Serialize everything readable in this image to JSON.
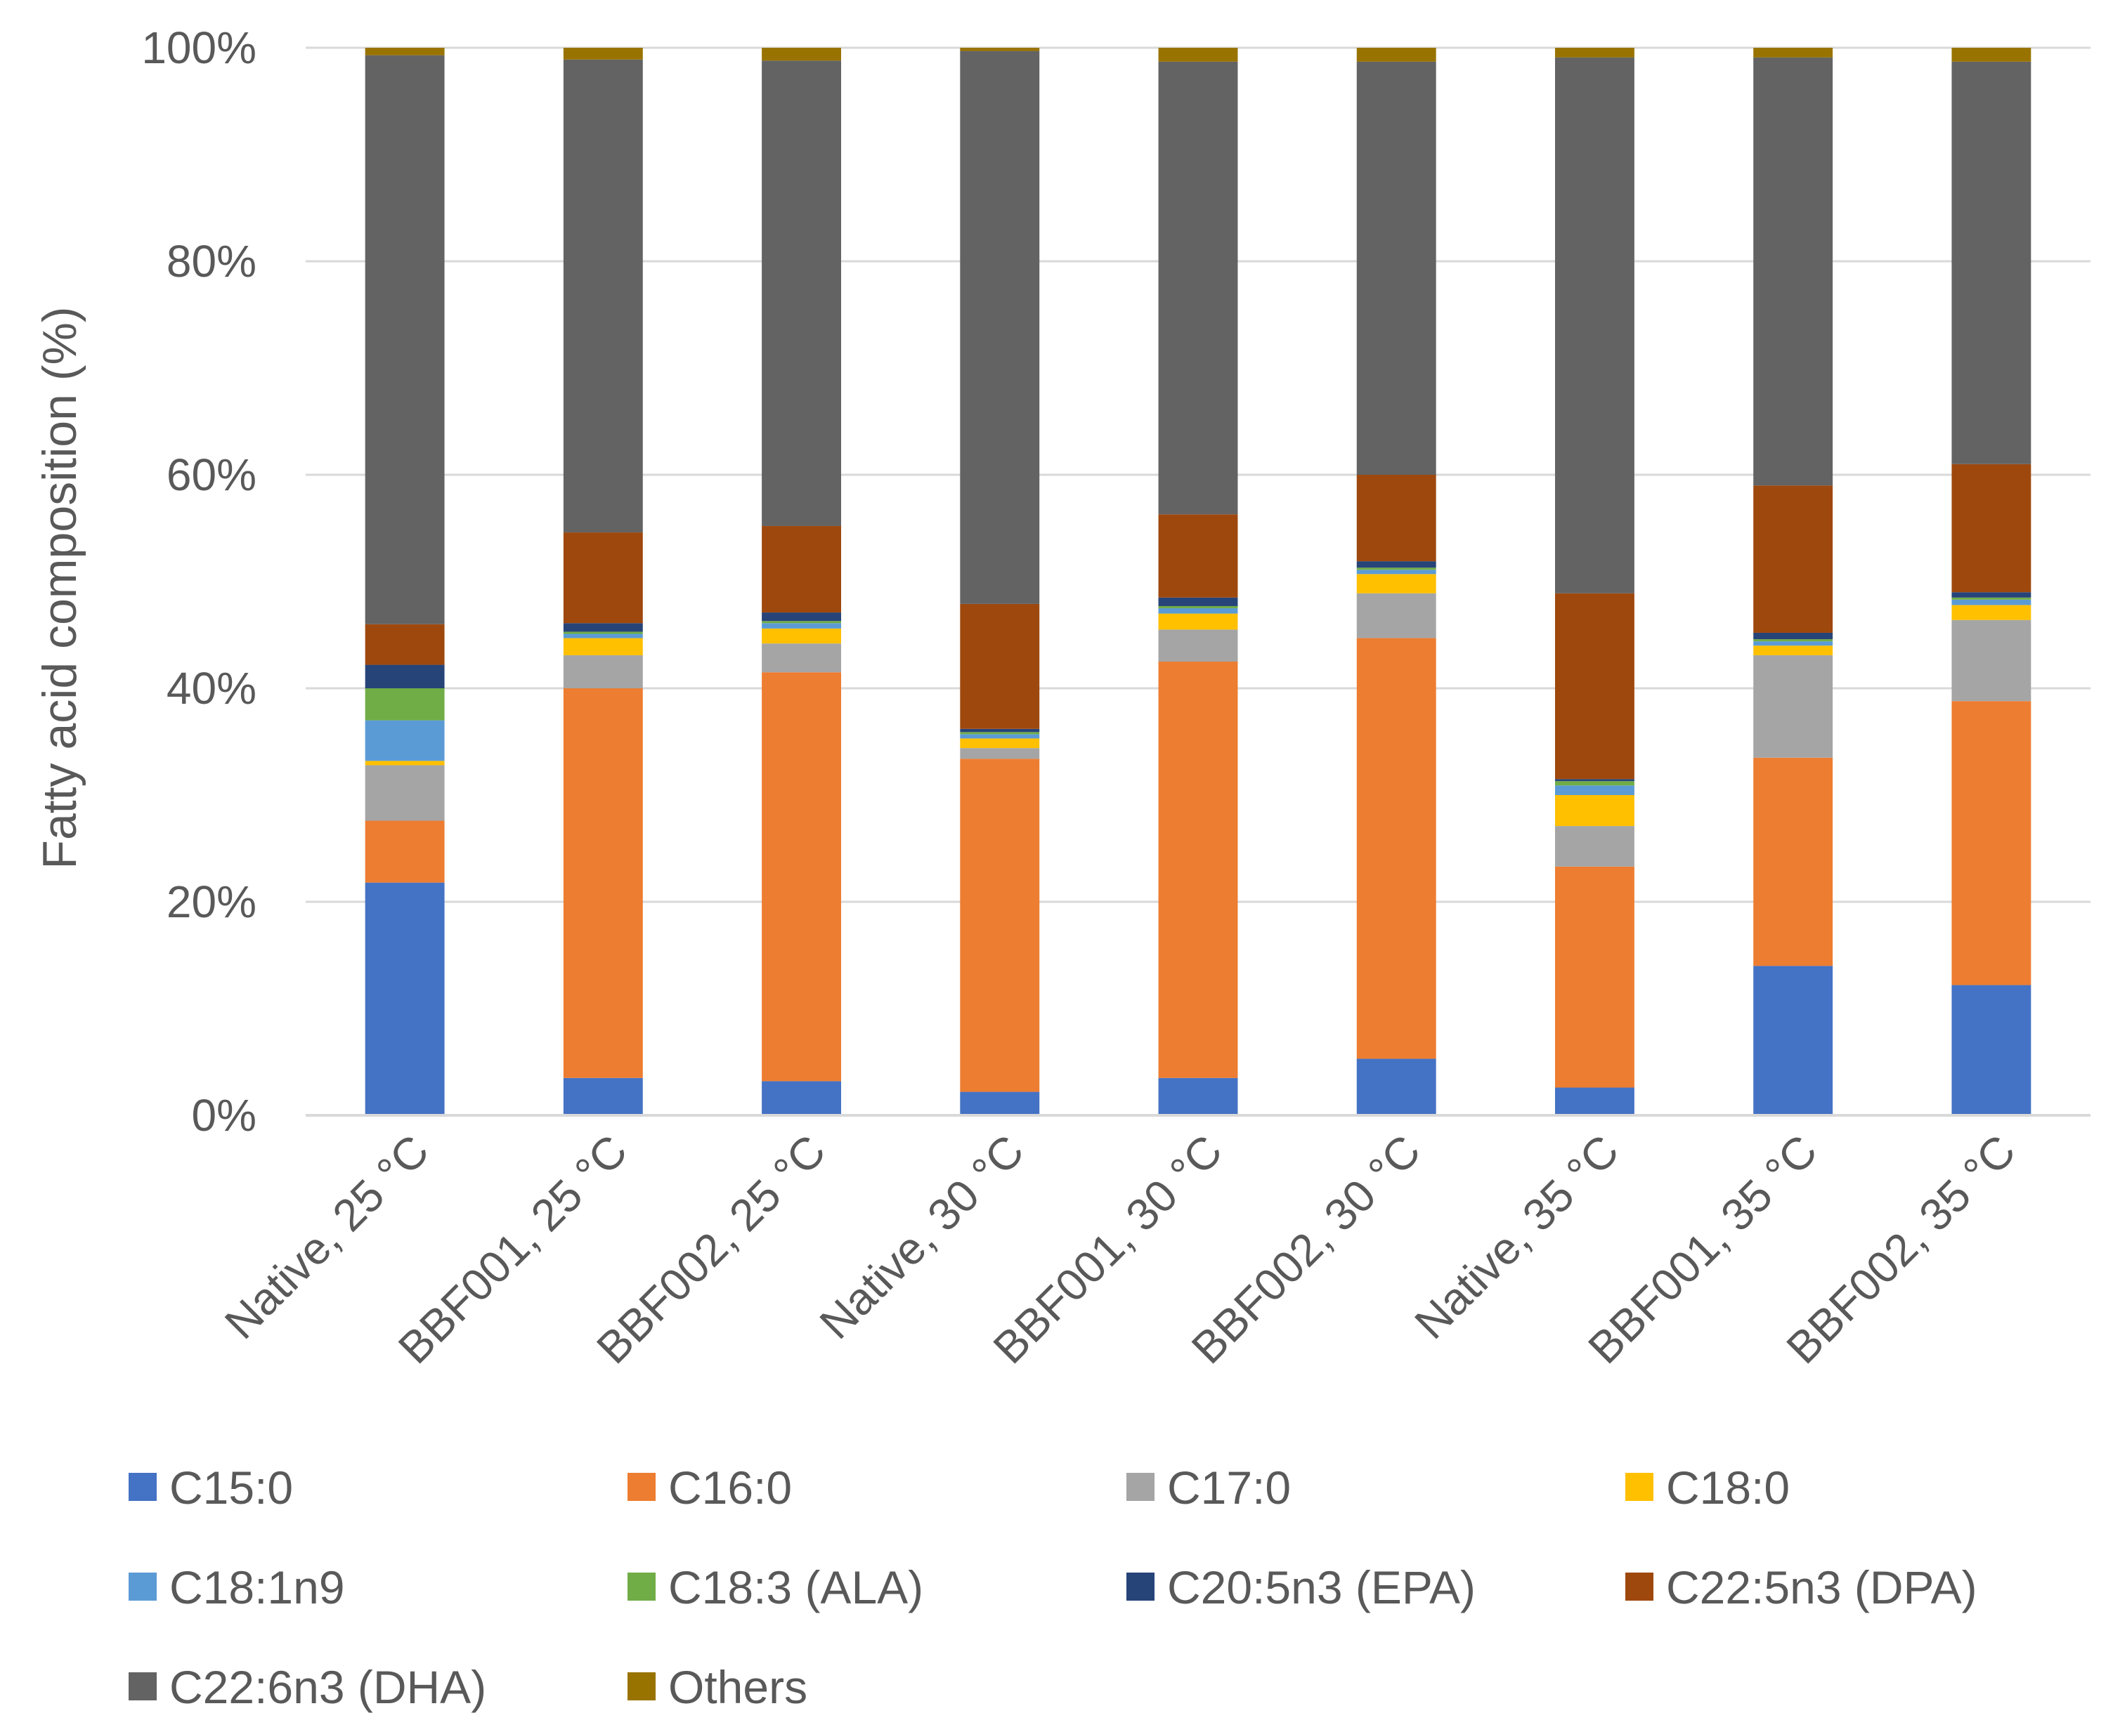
{
  "chart_data": {
    "type": "bar",
    "stacked": "percent",
    "title": "",
    "xlabel": "",
    "ylabel": "Fatty acid composition (%)",
    "ylim": [
      0,
      100
    ],
    "yticks": [
      "0%",
      "20%",
      "40%",
      "60%",
      "80%",
      "100%"
    ],
    "grid": true,
    "legend_position": "bottom",
    "categories": [
      "Native, 25 °C",
      "BBF001, 25 °C",
      "BBF002, 25 °C",
      "Native, 30 °C",
      "BBF001, 30 °C",
      "BBF002, 30 °C",
      "Native, 35 °C",
      "BBF001, 35 °C",
      "BBF002, 35 °C"
    ],
    "series": [
      {
        "name": "C15:0",
        "color": "#4472C4",
        "values": [
          21.8,
          3.5,
          3.2,
          2.2,
          3.5,
          5.3,
          2.6,
          14.0,
          12.2
        ]
      },
      {
        "name": "C16:0",
        "color": "#ED7D31",
        "values": [
          5.8,
          36.5,
          38.3,
          31.2,
          39.0,
          39.4,
          20.7,
          19.5,
          26.6
        ]
      },
      {
        "name": "C17:0",
        "color": "#A5A5A5",
        "values": [
          5.2,
          3.1,
          2.7,
          1.0,
          3.0,
          4.2,
          3.8,
          9.6,
          7.6
        ]
      },
      {
        "name": "C18:0",
        "color": "#FFC000",
        "values": [
          0.4,
          1.6,
          1.4,
          0.9,
          1.5,
          1.8,
          2.9,
          0.9,
          1.4
        ]
      },
      {
        "name": "C18:1n9",
        "color": "#5B9BD5",
        "values": [
          3.8,
          0.4,
          0.5,
          0.4,
          0.5,
          0.4,
          0.9,
          0.4,
          0.5
        ]
      },
      {
        "name": "C18:3 (ALA)",
        "color": "#70AD47",
        "values": [
          3.0,
          0.2,
          0.2,
          0.2,
          0.2,
          0.2,
          0.4,
          0.2,
          0.2
        ]
      },
      {
        "name": "C20:5n3 (EPA)",
        "color": "#264478",
        "values": [
          2.2,
          0.8,
          0.8,
          0.3,
          0.8,
          0.6,
          0.2,
          0.6,
          0.5
        ]
      },
      {
        "name": "C22:5n3 (DPA)",
        "color": "#9E480E",
        "values": [
          3.8,
          8.5,
          8.1,
          11.7,
          7.8,
          8.1,
          17.4,
          13.8,
          12.0
        ]
      },
      {
        "name": "C22:6n3 (DHA)",
        "color": "#636363",
        "values": [
          53.3,
          44.3,
          43.6,
          51.8,
          42.4,
          38.7,
          50.2,
          40.1,
          37.7
        ]
      },
      {
        "name": "Others",
        "color": "#997300",
        "values": [
          0.7,
          1.1,
          1.2,
          0.3,
          1.3,
          1.3,
          0.9,
          0.9,
          1.3
        ]
      }
    ]
  }
}
